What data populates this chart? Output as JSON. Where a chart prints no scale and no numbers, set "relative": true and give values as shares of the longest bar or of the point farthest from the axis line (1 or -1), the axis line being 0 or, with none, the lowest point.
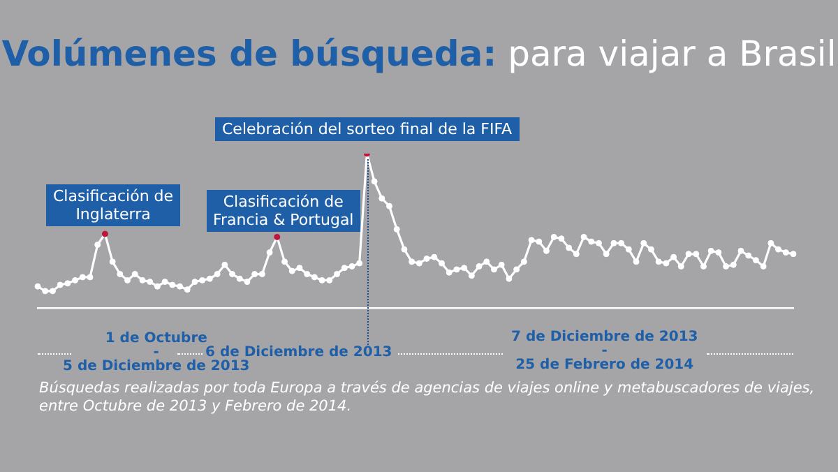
{
  "chart_data": {
    "type": "line",
    "title": "Volúmenes de búsqueda:",
    "subtitle": "para viajar a Brasil",
    "relative": true,
    "grid": false,
    "legend": false,
    "marker": "circle",
    "line_style": "solid",
    "categories": [
      null,
      null,
      null,
      null,
      null,
      null,
      null,
      null,
      null,
      null,
      null,
      null,
      null,
      null,
      null,
      null,
      null,
      null,
      null,
      null,
      null,
      null,
      null,
      null,
      null,
      null,
      null,
      null,
      null,
      null,
      null,
      null,
      null,
      null,
      null,
      null,
      null,
      null,
      null,
      null,
      null,
      null,
      null,
      null,
      null,
      null,
      null,
      null,
      null,
      null,
      null,
      null,
      null,
      null,
      null,
      null,
      null,
      null,
      null,
      null,
      null,
      null,
      null,
      null,
      null,
      null,
      null,
      null,
      null,
      null,
      null,
      null,
      null,
      null,
      null,
      null,
      null,
      null,
      null,
      null,
      null,
      null,
      null,
      null,
      null,
      null,
      null,
      null,
      null,
      null,
      null,
      null,
      null,
      null,
      null,
      null,
      null,
      null,
      null,
      null,
      null,
      null
    ],
    "series": [
      {
        "color": "#ffffff",
        "colors": [
          "#ffffff",
          "#ffffff",
          "#ffffff",
          "#ffffff",
          "#ffffff",
          "#ffffff",
          "#ffffff",
          "#ffffff",
          "#ffffff",
          "#c0143c",
          "#ffffff",
          "#ffffff",
          "#ffffff",
          "#ffffff",
          "#ffffff",
          "#ffffff",
          "#ffffff",
          "#ffffff",
          "#ffffff",
          "#ffffff",
          "#ffffff",
          "#ffffff",
          "#ffffff",
          "#ffffff",
          "#ffffff",
          "#ffffff",
          "#ffffff",
          "#ffffff",
          "#ffffff",
          "#ffffff",
          "#ffffff",
          "#ffffff",
          "#c0143c",
          "#ffffff",
          "#ffffff",
          "#ffffff",
          "#ffffff",
          "#ffffff",
          "#ffffff",
          "#ffffff",
          "#ffffff",
          "#ffffff",
          "#ffffff",
          "#ffffff",
          "#c0143c",
          "#ffffff",
          "#ffffff",
          "#ffffff",
          "#ffffff",
          "#ffffff",
          "#ffffff",
          "#ffffff",
          "#ffffff",
          "#ffffff",
          "#ffffff",
          "#ffffff",
          "#ffffff",
          "#ffffff",
          "#ffffff",
          "#ffffff",
          "#ffffff",
          "#ffffff",
          "#ffffff",
          "#ffffff",
          "#ffffff",
          "#ffffff",
          "#ffffff",
          "#ffffff",
          "#ffffff",
          "#ffffff",
          "#ffffff",
          "#ffffff",
          "#ffffff",
          "#ffffff",
          "#ffffff",
          "#ffffff",
          "#ffffff",
          "#ffffff",
          "#ffffff",
          "#ffffff",
          "#ffffff",
          "#ffffff",
          "#ffffff",
          "#ffffff",
          "#ffffff",
          "#ffffff",
          "#ffffff",
          "#ffffff",
          "#ffffff",
          "#ffffff",
          "#ffffff",
          "#ffffff",
          "#ffffff",
          "#ffffff",
          "#ffffff",
          "#ffffff",
          "#ffffff",
          "#ffffff",
          "#ffffff",
          "#ffffff",
          "#ffffff",
          "#ffffff"
        ],
        "values": [
          0.14,
          0.11,
          0.11,
          0.15,
          0.16,
          0.18,
          0.2,
          0.2,
          0.41,
          0.48,
          0.3,
          0.22,
          0.18,
          0.22,
          0.18,
          0.17,
          0.14,
          0.17,
          0.15,
          0.14,
          0.12,
          0.17,
          0.18,
          0.19,
          0.22,
          0.28,
          0.22,
          0.19,
          0.17,
          0.22,
          0.22,
          0.36,
          0.46,
          0.3,
          0.24,
          0.26,
          0.22,
          0.2,
          0.18,
          0.18,
          0.22,
          0.26,
          0.27,
          0.29,
          1,
          0.82,
          0.71,
          0.66,
          0.51,
          0.38,
          0.3,
          0.29,
          0.32,
          0.33,
          0.29,
          0.23,
          0.25,
          0.26,
          0.21,
          0.27,
          0.3,
          0.25,
          0.28,
          0.19,
          0.25,
          0.3,
          0.44,
          0.43,
          0.37,
          0.46,
          0.45,
          0.39,
          0.35,
          0.46,
          0.43,
          0.42,
          0.35,
          0.42,
          0.42,
          0.38,
          0.3,
          0.42,
          0.38,
          0.3,
          0.29,
          0.33,
          0.27,
          0.35,
          0.35,
          0.27,
          0.37,
          0.36,
          0.27,
          0.28,
          0.37,
          0.34,
          0.31,
          0.27,
          0.42,
          0.38,
          0.36,
          0.35
        ]
      }
    ],
    "annotations": [
      "Clasificación de\nInglaterra",
      "Clasificación de\nFrancia & Portugal",
      "Celebración del sorteo final de la FIFA",
      "1 de Octubre\n-\n5 de Diciembre de 2013",
      "6 de Diciembre de 2013",
      "7 de Diciembre de 2013\n-\n25 de Febrero de 2014",
      "Búsquedas realizadas por toda Europa a través de agencias de viajes online y metabuscadores de viajes, entre Octubre de 2013 y Febrero de 2014."
    ]
  }
}
